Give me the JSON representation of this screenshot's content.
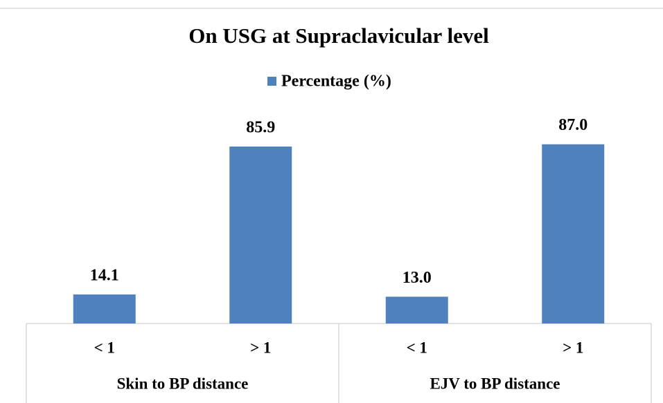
{
  "chart_data": {
    "type": "bar",
    "title": "On USG at Supraclavicular level",
    "categories": [
      "< 1",
      "> 1",
      "< 1",
      "> 1"
    ],
    "groups": [
      "Skin to BP distance",
      "EJV to BP distance"
    ],
    "series": [
      {
        "name": "Percentage (%)",
        "color": "#4f81bd",
        "values": [
          14.1,
          85.9,
          13.0,
          87.0
        ],
        "value_labels": [
          "14.1",
          "85.9",
          "13.0",
          "87.0"
        ]
      }
    ],
    "ylim": [
      0,
      100
    ],
    "legend": "top"
  }
}
